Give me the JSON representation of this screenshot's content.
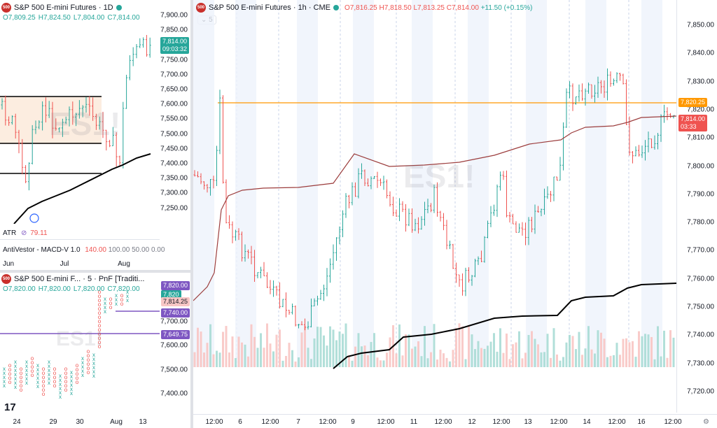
{
  "top_left": {
    "title": "S&P 500 E-mini Futures · 1D",
    "ohlc": {
      "o": "O7,809.25",
      "h": "H7,824.50",
      "l": "L7,804.00",
      "c": "C7,814.00"
    },
    "logo": "500",
    "price_ticks": [
      "7,900.00",
      "7,850.00",
      "7,800.00",
      "7,750.00",
      "7,700.00",
      "7,650.00",
      "7,600.00",
      "7,550.00",
      "7,500.00",
      "7,450.00",
      "7,400.00",
      "7,350.00",
      "7,300.00",
      "7,250.00"
    ],
    "last_price": "7,814.00",
    "countdown": "09:03:32",
    "atr_label": "ATR",
    "atr_value": "79.11",
    "macd_label": "AntiVestor - MACD-V 1.0",
    "macd_values": [
      "140.00",
      "100.00",
      "50.00",
      "0.00"
    ],
    "time_labels": [
      "Jun",
      "Jul",
      "Aug"
    ],
    "watermark": "ES1!"
  },
  "bottom_left": {
    "title": "S&P 500 E-mini F... · 5 · PnF [Traditi...",
    "logo": "500",
    "ohlc": {
      "o": "O7,820.00",
      "h": "H7,820.00",
      "l": "L7,820.00",
      "c": "C7,820.00"
    },
    "price_ticks": [
      "7,700.00",
      "7,600.00",
      "7,500.00",
      "7,400.00"
    ],
    "badges": [
      {
        "label": "7,820.00",
        "color": "#7e57c2"
      },
      {
        "label": "7,820",
        "color": "#26a69a"
      },
      {
        "label": "7,814.25",
        "color": "#f7c6c5"
      },
      {
        "label": "7,740.00",
        "color": "#7e57c2"
      },
      {
        "label": "7,649.75",
        "color": "#7e57c2"
      }
    ],
    "time_labels": [
      "24",
      "29",
      "30",
      "Aug",
      "13"
    ],
    "watermark": "ES1!",
    "tv_logo": "17"
  },
  "main": {
    "title": "S&P 500 E-mini Futures · 1h · CME",
    "logo": "500",
    "ohlc": {
      "o": "O7,816.25",
      "h": "H7,818.50",
      "l": "L7,813.25",
      "c": "C7,814.00",
      "chg": "+11.50 (+0.15%)"
    },
    "interval_chip": "5",
    "price_ticks": [
      "7,850.00",
      "7,840.00",
      "7,830.00",
      "7,820.00",
      "7,810.00",
      "7,800.00",
      "7,790.00",
      "7,780.00",
      "7,770.00",
      "7,760.00",
      "7,750.00",
      "7,740.00",
      "7,730.00",
      "7,720.00"
    ],
    "horizontal_level": "7,820.25",
    "last_price": "7,814.00",
    "countdown": "03:33",
    "time_labels": [
      "12:00",
      "6",
      "12:00",
      "7",
      "12:00",
      "9",
      "12:00",
      "11",
      "12:00",
      "12",
      "12:00",
      "13",
      "12:00",
      "14",
      "12:00",
      "16",
      "12:00"
    ],
    "watermark": "ES1!",
    "colors": {
      "up": "#26a69a",
      "down": "#ef5350",
      "level": "#ff9800",
      "vwap": "#9c3d3d",
      "ma": "#000000"
    }
  }
}
